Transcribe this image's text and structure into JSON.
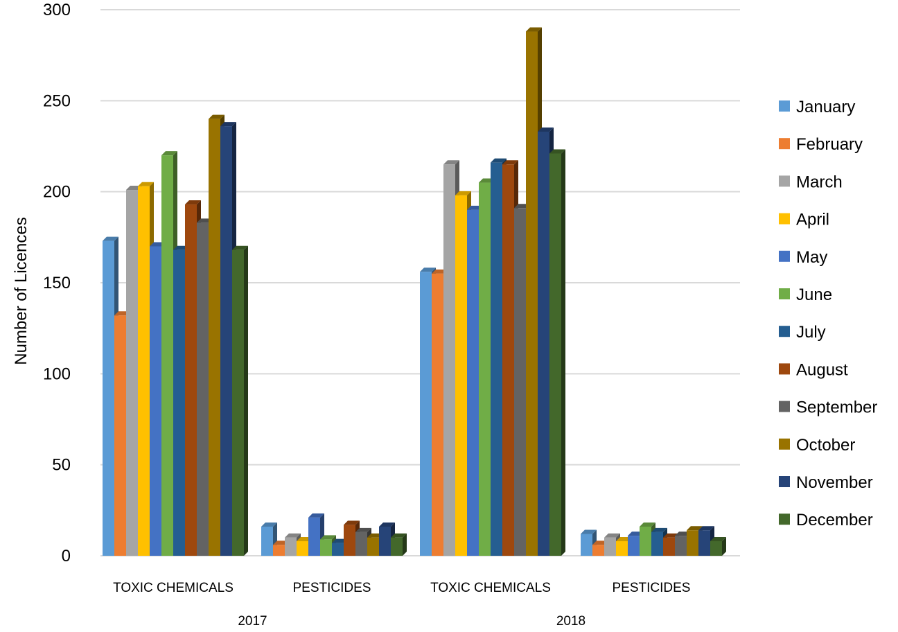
{
  "chart_data": {
    "type": "bar",
    "title": "",
    "xlabel": "",
    "ylabel": "Number of Licences",
    "ylim": [
      0,
      300
    ],
    "yticks": [
      0,
      50,
      100,
      150,
      200,
      250,
      300
    ],
    "grid": true,
    "style": "3d-clustered-columns",
    "legend_position": "right",
    "groups": [
      {
        "label": "2017",
        "categories": [
          "TOXIC CHEMICALS",
          "PESTICIDES"
        ]
      },
      {
        "label": "2018",
        "categories": [
          "TOXIC CHEMICALS",
          "PESTICIDES"
        ]
      }
    ],
    "categories": [
      "TOXIC CHEMICALS",
      "PESTICIDES",
      "TOXIC CHEMICALS",
      "PESTICIDES"
    ],
    "series": [
      {
        "name": "January",
        "color": "#5b9bd5",
        "values": [
          173,
          16,
          156,
          12
        ]
      },
      {
        "name": "February",
        "color": "#ed7d31",
        "values": [
          132,
          6,
          155,
          6
        ]
      },
      {
        "name": "March",
        "color": "#a5a5a5",
        "values": [
          201,
          10,
          215,
          10
        ]
      },
      {
        "name": "April",
        "color": "#ffc000",
        "values": [
          203,
          8,
          198,
          8
        ]
      },
      {
        "name": "May",
        "color": "#4472c4",
        "values": [
          170,
          21,
          190,
          11
        ]
      },
      {
        "name": "June",
        "color": "#70ad47",
        "values": [
          220,
          9,
          205,
          16
        ]
      },
      {
        "name": "July",
        "color": "#255e91",
        "values": [
          168,
          7,
          216,
          13
        ]
      },
      {
        "name": "August",
        "color": "#9e480e",
        "values": [
          193,
          17,
          215,
          10
        ]
      },
      {
        "name": "September",
        "color": "#636363",
        "values": [
          183,
          13,
          191,
          11
        ]
      },
      {
        "name": "October",
        "color": "#997300",
        "values": [
          240,
          10,
          288,
          14
        ]
      },
      {
        "name": "November",
        "color": "#264478",
        "values": [
          236,
          16,
          233,
          14
        ]
      },
      {
        "name": "December",
        "color": "#43682b",
        "values": [
          168,
          10,
          221,
          8
        ]
      }
    ]
  }
}
